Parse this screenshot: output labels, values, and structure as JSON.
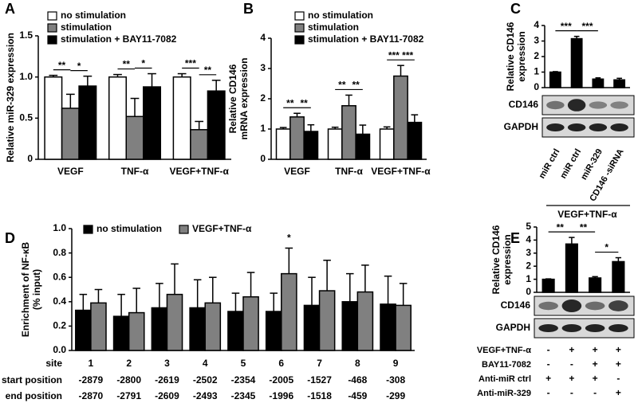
{
  "chart_data": [
    {
      "panel": "A",
      "type": "bar",
      "ylabel": "Relative miR-329 expression",
      "categories": [
        "VEGF",
        "TNF-α",
        "VEGF+TNF-α"
      ],
      "series": [
        {
          "name": "no stimulation",
          "color": "#ffffff",
          "values": [
            1.0,
            1.0,
            1.0
          ],
          "errors": [
            0.02,
            0.03,
            0.04
          ]
        },
        {
          "name": "stimulation",
          "color": "#808080",
          "values": [
            0.62,
            0.52,
            0.36
          ],
          "errors": [
            0.17,
            0.22,
            0.1
          ]
        },
        {
          "name": "stimulation + BAY11-7082",
          "color": "#000000",
          "values": [
            0.89,
            0.88,
            0.83
          ],
          "errors": [
            0.12,
            0.16,
            0.13
          ]
        }
      ],
      "ylim": [
        0,
        1.5
      ],
      "yticks": [
        0,
        0.5,
        {
          "value": 1,
          "label": "1.0"
        },
        1.5
      ],
      "significance": [
        "**",
        "*",
        "**",
        "*",
        "***",
        "**"
      ]
    },
    {
      "panel": "B",
      "type": "bar",
      "ylabel": "Relative CD146 mRNA expression",
      "categories": [
        "VEGF",
        "TNF-α",
        "VEGF+TNF-α"
      ],
      "series": [
        {
          "name": "no stimulation",
          "color": "#ffffff",
          "values": [
            1.0,
            1.0,
            1.0
          ],
          "errors": [
            0.05,
            0.06,
            0.07
          ]
        },
        {
          "name": "stimulation",
          "color": "#808080",
          "values": [
            1.4,
            1.77,
            2.75
          ],
          "errors": [
            0.12,
            0.35,
            0.35
          ]
        },
        {
          "name": "stimulation + BAY11-7082",
          "color": "#000000",
          "values": [
            0.92,
            0.83,
            1.22
          ],
          "errors": [
            0.22,
            0.3,
            0.25
          ]
        }
      ],
      "ylim": [
        0,
        4
      ],
      "yticks": [
        0,
        1,
        2,
        3,
        4
      ],
      "significance": [
        "**",
        "**",
        "**",
        "**",
        "***",
        "***"
      ]
    },
    {
      "panel": "C",
      "type": "bar",
      "ylabel": "Relative CD146 expression",
      "categories": [
        "miR ctrl",
        "miR ctrl",
        "miR-329",
        "CD146 -siRNA"
      ],
      "values": [
        1.0,
        3.15,
        0.55,
        0.5
      ],
      "errors": [
        0.03,
        0.15,
        0.08,
        0.1
      ],
      "color": "#000000",
      "ylim": [
        0,
        4
      ],
      "yticks": [
        0,
        1,
        2,
        3,
        4
      ],
      "significance": [
        "***",
        "***"
      ],
      "blots": [
        "CD146",
        "GAPDH"
      ],
      "group_label": "VEGF+TNF-α"
    },
    {
      "panel": "D",
      "type": "bar",
      "ylabel": "Enrichment of NF-κB (% input)",
      "categories": [
        "1",
        "2",
        "3",
        "4",
        "5",
        "6",
        "7",
        "8",
        "9"
      ],
      "series": [
        {
          "name": "no stimulation",
          "color": "#000000",
          "values": [
            0.33,
            0.28,
            0.35,
            0.35,
            0.32,
            0.32,
            0.37,
            0.4,
            0.38
          ],
          "errors": [
            0.13,
            0.18,
            0.2,
            0.23,
            0.15,
            0.15,
            0.23,
            0.23,
            0.23
          ]
        },
        {
          "name": "VEGF+TNF-α",
          "color": "#808080",
          "values": [
            0.39,
            0.31,
            0.46,
            0.39,
            0.44,
            0.63,
            0.49,
            0.48,
            0.37
          ],
          "errors": [
            0.11,
            0.2,
            0.25,
            0.21,
            0.2,
            0.21,
            0.25,
            0.22,
            0.18
          ]
        }
      ],
      "ylim": [
        0,
        1
      ],
      "yticks": [
        {
          "value": 0,
          "label": "0.0"
        },
        0.2,
        0.4,
        0.6,
        0.8,
        {
          "value": 1,
          "label": "1.0"
        }
      ],
      "significance": [
        "*"
      ],
      "row_labels": [
        "site",
        "start position",
        "end position"
      ],
      "start_positions": [
        -2879,
        -2800,
        -2619,
        -2502,
        -2354,
        -2005,
        -1527,
        -468,
        -308
      ],
      "end_positions": [
        -2870,
        -2791,
        -2609,
        -2493,
        -2345,
        -1996,
        -1518,
        -459,
        -299
      ]
    },
    {
      "panel": "E",
      "type": "bar",
      "ylabel": "Relative CD146 expression",
      "values": [
        1.0,
        3.7,
        1.1,
        2.35
      ],
      "errors": [
        0.03,
        0.5,
        0.1,
        0.3
      ],
      "color": "#000000",
      "ylim": [
        0,
        5
      ],
      "yticks": [
        0,
        1,
        2,
        3,
        4,
        5
      ],
      "significance": [
        "**",
        "**",
        "*"
      ],
      "blots": [
        "CD146",
        "GAPDH"
      ],
      "conditions": [
        {
          "label": "VEGF+TNF-α",
          "marks": [
            "-",
            "+",
            "+",
            "+"
          ]
        },
        {
          "label": "BAY11-7082",
          "marks": [
            "-",
            "-",
            "+",
            "+"
          ]
        },
        {
          "label": "Anti-miR ctrl",
          "marks": [
            "+",
            "+",
            "+",
            "-"
          ]
        },
        {
          "label": "Anti-miR-329",
          "marks": [
            "-",
            "-",
            "-",
            "+"
          ]
        }
      ]
    }
  ]
}
